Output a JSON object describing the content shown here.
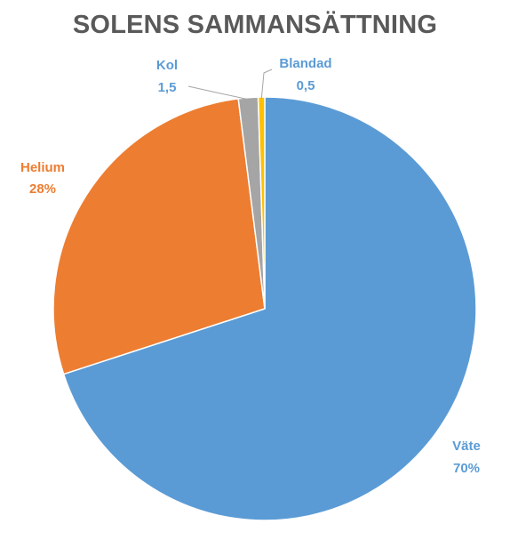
{
  "chart_data": {
    "type": "pie",
    "title": "SOLENS SAMMANSÄTTNING",
    "categories": [
      "Väte",
      "Helium",
      "Kol",
      "Blandad"
    ],
    "values": [
      70,
      28,
      1.5,
      0.5
    ],
    "labels": [
      {
        "name": "Väte",
        "value": "70%"
      },
      {
        "name": "Helium",
        "value": "28%"
      },
      {
        "name": "Kol",
        "value": "1,5"
      },
      {
        "name": "Blandad",
        "value": "0,5"
      }
    ],
    "colors": [
      "#5B9BD5",
      "#ED7D31",
      "#A5A5A5",
      "#FFC000"
    ],
    "label_colors": [
      "#5B9BD5",
      "#ED7D31",
      "#5B9BD5",
      "#5B9BD5"
    ],
    "start": "12 o'clock",
    "direction": "clockwise",
    "legend": "none"
  }
}
